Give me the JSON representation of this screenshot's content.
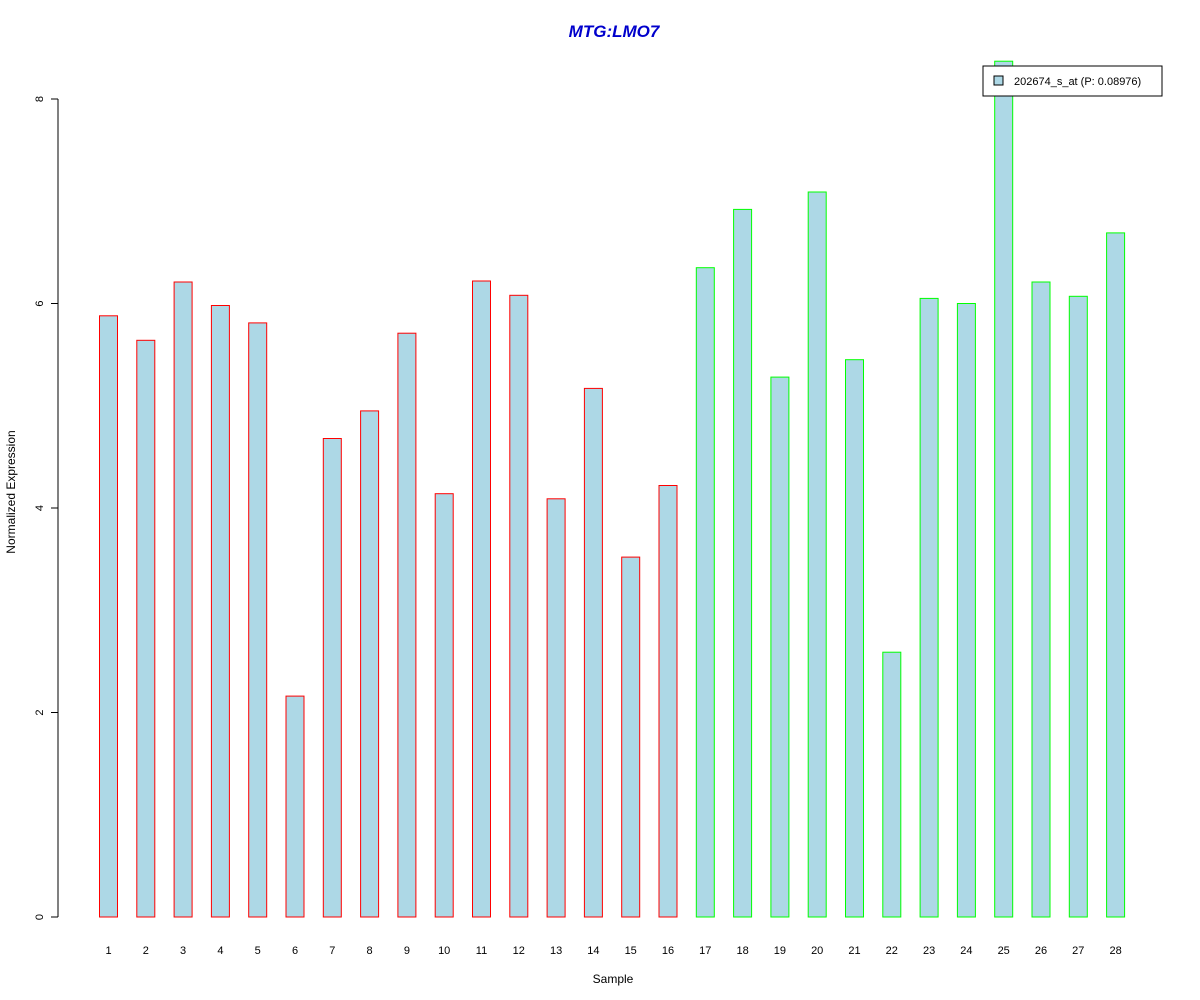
{
  "chart_data": {
    "type": "bar",
    "title": "MTG:LMO7",
    "xlabel": "Sample",
    "ylabel": "Normalized Expression",
    "ylim": [
      0,
      8
    ],
    "yticks": [
      "0",
      "2",
      "4",
      "6",
      "8"
    ],
    "categories": [
      "1",
      "2",
      "3",
      "4",
      "5",
      "6",
      "7",
      "8",
      "9",
      "10",
      "11",
      "12",
      "13",
      "14",
      "15",
      "16",
      "17",
      "18",
      "19",
      "20",
      "21",
      "22",
      "23",
      "24",
      "25",
      "26",
      "27",
      "28"
    ],
    "values": [
      5.88,
      5.64,
      6.21,
      5.98,
      5.81,
      2.16,
      4.68,
      4.95,
      5.71,
      4.14,
      6.22,
      6.08,
      4.09,
      5.17,
      3.52,
      4.22,
      6.35,
      6.92,
      5.28,
      7.09,
      5.45,
      2.59,
      6.05,
      6.0,
      8.37,
      6.21,
      6.07,
      6.69
    ],
    "groups": [
      "1",
      "1",
      "1",
      "1",
      "1",
      "1",
      "1",
      "1",
      "1",
      "1",
      "1",
      "1",
      "1",
      "1",
      "1",
      "1",
      "2",
      "2",
      "2",
      "2",
      "2",
      "2",
      "2",
      "2",
      "2",
      "2",
      "2",
      "2"
    ],
    "colors": {
      "title": "#0000cc",
      "bar_fill": "#add8e6",
      "group1_border": "#ff0000",
      "group2_border": "#00ff00",
      "axis": "#000000"
    },
    "legend": {
      "entry": "202674_s_at (P: 0.08976)",
      "position": "top-right"
    },
    "grid": false
  }
}
